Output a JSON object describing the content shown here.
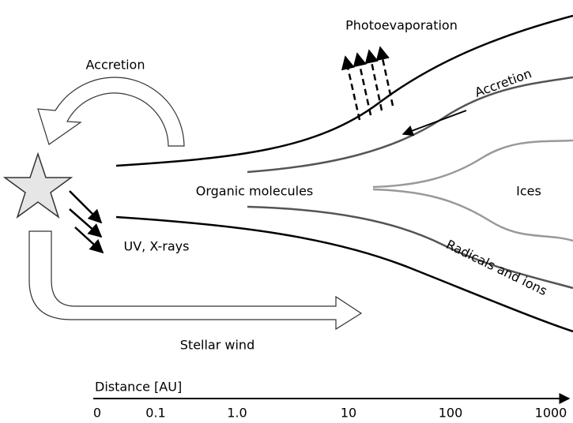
{
  "labels": {
    "accretion_star": "Accretion",
    "photoevaporation": "Photoevaporation",
    "accretion_disk": "Accretion",
    "organic_molecules": "Organic molecules",
    "ices": "Ices",
    "uv_xrays": "UV, X-rays",
    "radicals_ions": "Radicals and ions",
    "stellar_wind": "Stellar wind"
  },
  "axis": {
    "label": "Distance [AU]",
    "ticks": [
      "0",
      "0.1",
      "1.0",
      "10",
      "100",
      "1000"
    ]
  }
}
